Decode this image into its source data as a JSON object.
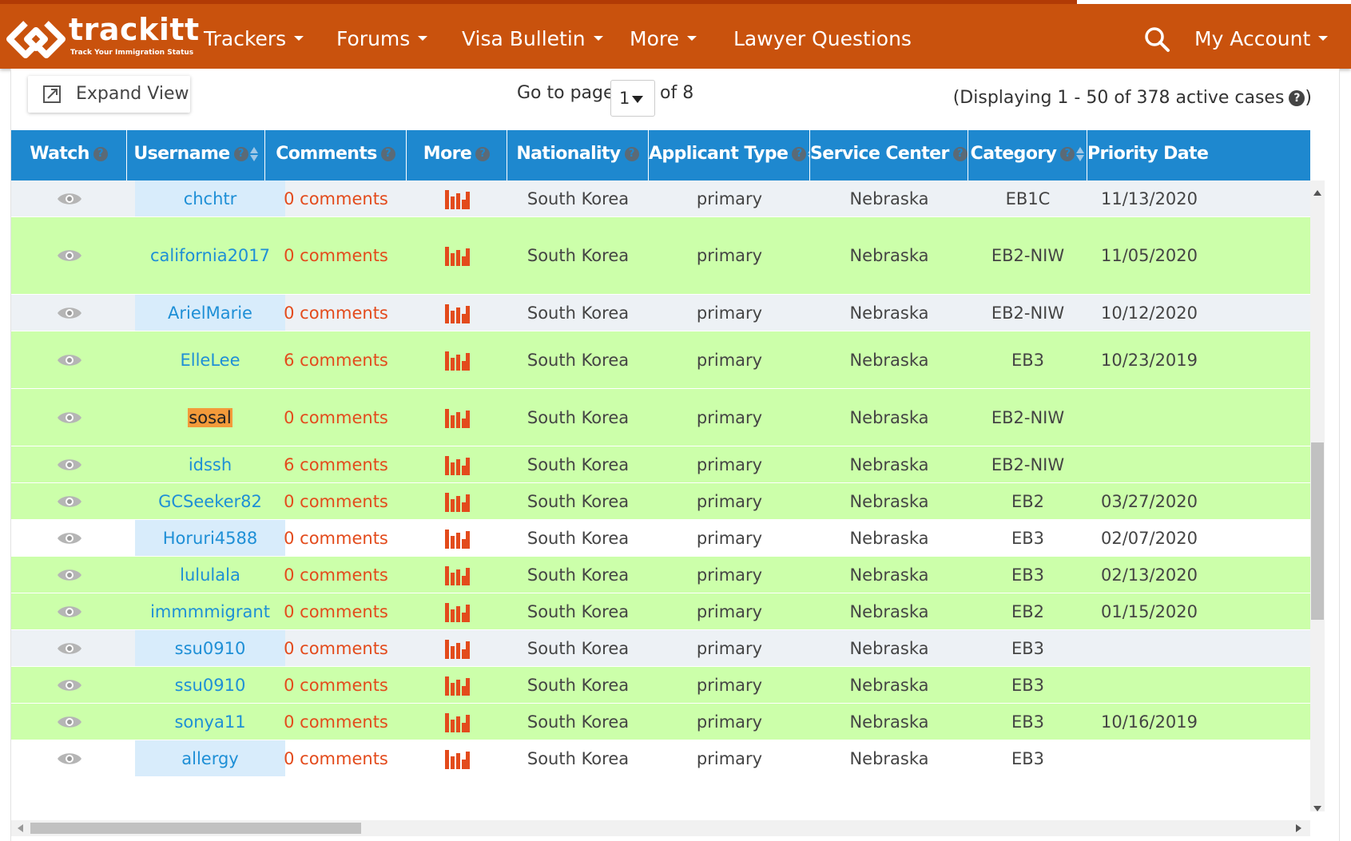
{
  "nav": {
    "logo_text": "trackitt",
    "logo_tagline": "Track Your Immigration Status",
    "items": [
      {
        "label": "Trackers",
        "dropdown": true
      },
      {
        "label": "Forums",
        "dropdown": true
      },
      {
        "label": "Visa Bulletin",
        "dropdown": true
      },
      {
        "label": "More",
        "dropdown": true
      },
      {
        "label": "Lawyer Questions",
        "dropdown": false
      }
    ],
    "search_icon": "search-icon",
    "account_label": "My Account"
  },
  "toolbar": {
    "expand_label": "Expand View",
    "goto_label": "Go to page",
    "current_page": "1",
    "of_label": "of 8",
    "display_info": "(Displaying 1 - 50 of 378 active cases"
  },
  "table": {
    "headers": [
      {
        "label": "Watch",
        "help": true,
        "sortable": false
      },
      {
        "label": "Username",
        "help": true,
        "sortable": true
      },
      {
        "label": "Comments",
        "help": true,
        "sortable": false
      },
      {
        "label": "More",
        "help": true,
        "sortable": false
      },
      {
        "label": "Nationality",
        "help": true,
        "sortable": false
      },
      {
        "label": "Applicant Type",
        "help": true,
        "sortable": true
      },
      {
        "label": "Service Center",
        "help": true,
        "sortable": true
      },
      {
        "label": "Category",
        "help": true,
        "sortable": true
      },
      {
        "label": "Priority Date",
        "help": true,
        "sortable": true
      }
    ],
    "rows": [
      {
        "username": "chchtr",
        "comments": "0 comments",
        "nationality": "South Korea",
        "applicant_type": "primary",
        "service_center": "Nebraska",
        "category": "EB1C",
        "priority_date": "11/13/2020",
        "row_color": "#edf1f5",
        "user_color": "#d8ecfb",
        "highlight": false
      },
      {
        "username": "california2017",
        "comments": "0 comments",
        "nationality": "South Korea",
        "applicant_type": "primary",
        "service_center": "Nebraska",
        "category": "EB2-NIW",
        "priority_date": "11/05/2020",
        "row_color": "#ccffaa",
        "user_color": "#ccffaa",
        "highlight": false
      },
      {
        "username": "ArielMarie",
        "comments": "0 comments",
        "nationality": "South Korea",
        "applicant_type": "primary",
        "service_center": "Nebraska",
        "category": "EB2-NIW",
        "priority_date": "10/12/2020",
        "row_color": "#edf1f5",
        "user_color": "#d8ecfb",
        "highlight": false
      },
      {
        "username": "ElleLee",
        "comments": "6 comments",
        "nationality": "South Korea",
        "applicant_type": "primary",
        "service_center": "Nebraska",
        "category": "EB3",
        "priority_date": "10/23/2019",
        "row_color": "#ccffaa",
        "user_color": "#ccffaa",
        "highlight": false
      },
      {
        "username": "sosal",
        "comments": "0 comments",
        "nationality": "South Korea",
        "applicant_type": "primary",
        "service_center": "Nebraska",
        "category": "EB2-NIW",
        "priority_date": "",
        "row_color": "#ccffaa",
        "user_color": "#ccffaa",
        "highlight": true
      },
      {
        "username": "idssh",
        "comments": "6 comments",
        "nationality": "South Korea",
        "applicant_type": "primary",
        "service_center": "Nebraska",
        "category": "EB2-NIW",
        "priority_date": "",
        "row_color": "#ccffaa",
        "user_color": "#ccffaa",
        "highlight": false
      },
      {
        "username": "GCSeeker82",
        "comments": "0 comments",
        "nationality": "South Korea",
        "applicant_type": "primary",
        "service_center": "Nebraska",
        "category": "EB2",
        "priority_date": "03/27/2020",
        "row_color": "#ccffaa",
        "user_color": "#ccffaa",
        "highlight": false
      },
      {
        "username": "Horuri4588",
        "comments": "0 comments",
        "nationality": "South Korea",
        "applicant_type": "primary",
        "service_center": "Nebraska",
        "category": "EB3",
        "priority_date": "02/07/2020",
        "row_color": "#ffffff",
        "user_color": "#d8ecfb",
        "highlight": false
      },
      {
        "username": "lululala",
        "comments": "0 comments",
        "nationality": "South Korea",
        "applicant_type": "primary",
        "service_center": "Nebraska",
        "category": "EB3",
        "priority_date": "02/13/2020",
        "row_color": "#ccffaa",
        "user_color": "#ccffaa",
        "highlight": false
      },
      {
        "username": "immmmigrant",
        "comments": "0 comments",
        "nationality": "South Korea",
        "applicant_type": "primary",
        "service_center": "Nebraska",
        "category": "EB2",
        "priority_date": "01/15/2020",
        "row_color": "#ccffaa",
        "user_color": "#ccffaa",
        "highlight": false
      },
      {
        "username": "ssu0910",
        "comments": "0 comments",
        "nationality": "South Korea",
        "applicant_type": "primary",
        "service_center": "Nebraska",
        "category": "EB3",
        "priority_date": "",
        "row_color": "#edf1f5",
        "user_color": "#d8ecfb",
        "highlight": false
      },
      {
        "username": "ssu0910",
        "comments": "0 comments",
        "nationality": "South Korea",
        "applicant_type": "primary",
        "service_center": "Nebraska",
        "category": "EB3",
        "priority_date": "",
        "row_color": "#ccffaa",
        "user_color": "#ccffaa",
        "highlight": false
      },
      {
        "username": "sonya11",
        "comments": "0 comments",
        "nationality": "South Korea",
        "applicant_type": "primary",
        "service_center": "Nebraska",
        "category": "EB3",
        "priority_date": "10/16/2019",
        "row_color": "#ccffaa",
        "user_color": "#ccffaa",
        "highlight": false
      },
      {
        "username": "allergy",
        "comments": "0 comments",
        "nationality": "South Korea",
        "applicant_type": "primary",
        "service_center": "Nebraska",
        "category": "EB3",
        "priority_date": "",
        "row_color": "#ffffff",
        "user_color": "#d8ecfb",
        "highlight": false
      }
    ]
  },
  "colors": {
    "navbar": "#c9520d",
    "header": "#1e88cf",
    "link": "#1e8fd6",
    "comments": "#e34b1c",
    "bars_icon": "#e34b1c",
    "highlight": "#f39a3a"
  },
  "icons": {
    "watch": "eye-icon",
    "more": "bar-chart-icon",
    "expand": "external-link-icon",
    "help": "question-circle-icon"
  }
}
